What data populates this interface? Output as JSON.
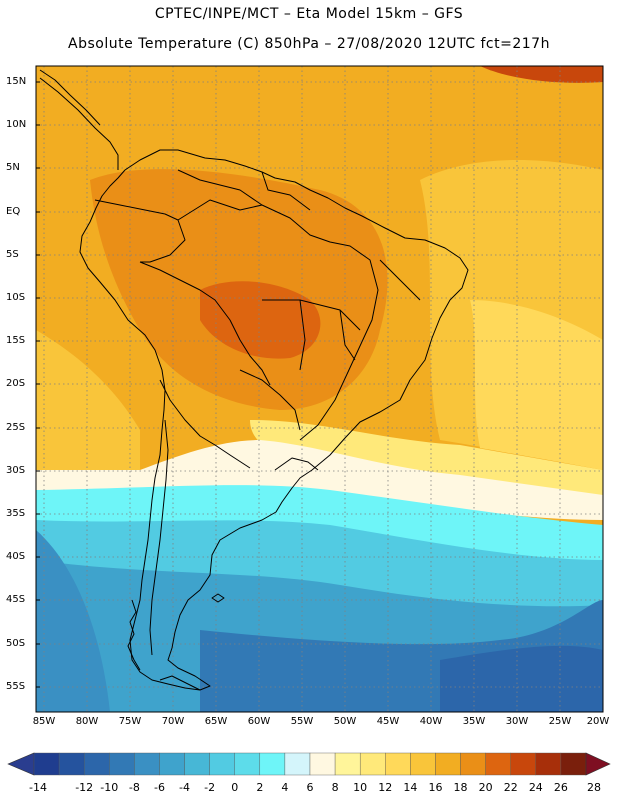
{
  "header": {
    "title_line1": "CPTEC/INPE/MCT –  Eta Model 15km – GFS",
    "title_line2": "Absolute Temperature (C) 850hPa – 27/08/2020 12UTC fct=217h"
  },
  "map": {
    "variable": "Absolute Temperature",
    "units": "C",
    "level": "850hPa",
    "lat_labels": [
      "15N",
      "10N",
      "5N",
      "EQ",
      "5S",
      "10S",
      "15S",
      "20S",
      "25S",
      "30S",
      "35S",
      "40S",
      "45S",
      "50S",
      "55S"
    ],
    "lon_labels": [
      "85W",
      "80W",
      "75W",
      "70W",
      "65W",
      "60W",
      "55W",
      "50W",
      "45W",
      "40W",
      "35W",
      "30W",
      "25W",
      "20W"
    ],
    "gridlines": "dotted",
    "boundaries_color": "#000000"
  },
  "colorbar": {
    "labels": [
      "-14",
      "-12",
      "-10",
      "-8",
      "-6",
      "-4",
      "-2",
      "0",
      "2",
      "4",
      "6",
      "8",
      "10",
      "12",
      "14",
      "16",
      "18",
      "20",
      "22",
      "24",
      "26",
      "28"
    ],
    "colors": [
      "#1f3d8f",
      "#25539e",
      "#2c66aa",
      "#3279b5",
      "#3a90c3",
      "#3fa3cc",
      "#47b7d6",
      "#52cbe2",
      "#5ddcea",
      "#6ef5f8",
      "#d4f5fb",
      "#fff8e1",
      "#fff59a",
      "#ffe97a",
      "#ffd95a",
      "#f9c53a",
      "#f2ad22",
      "#ea8f17",
      "#dd6510",
      "#c8470c",
      "#a72f0a",
      "#7a1f0c"
    ],
    "under_color": "#2a3d8f",
    "over_color": "#7e0f22"
  }
}
